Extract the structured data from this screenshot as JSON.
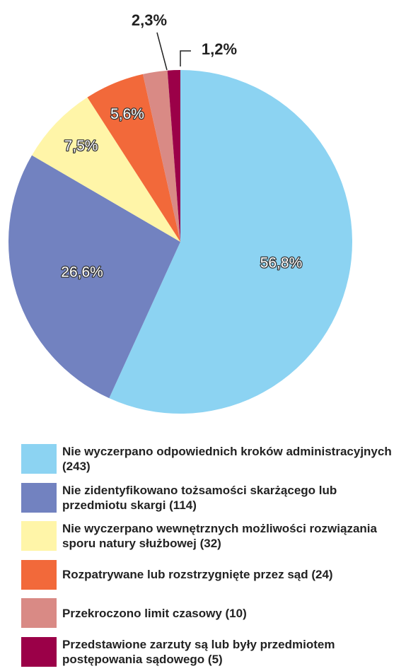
{
  "chart_data": {
    "type": "pie",
    "categories": [
      "Nie wyczerpano odpowiednich kroków administracyjnych (243)",
      "Nie zidentyfikowano tożsamości skarżącego lub przedmiotu skargi (114)",
      "Nie wyczerpano wewnętrznych możliwości rozwiązania sporu natury służbowej (32)",
      "Rozpatrywane lub rozstrzygnięte przez sąd (24)",
      "Przekroczono limit czasowy (10)",
      "Przedstawione zarzuty są lub były przedmiotem postępowania sądowego (5)"
    ],
    "values": [
      56.8,
      26.6,
      7.5,
      5.6,
      2.3,
      1.2
    ],
    "value_labels": [
      "56,8%",
      "26,6%",
      "7,5%",
      "5,6%",
      "2,3%",
      "1,2%"
    ],
    "colors": [
      "#8cd3f2",
      "#7282c0",
      "#fff5a8",
      "#f2693a",
      "#d98a85",
      "#9b0048"
    ]
  }
}
